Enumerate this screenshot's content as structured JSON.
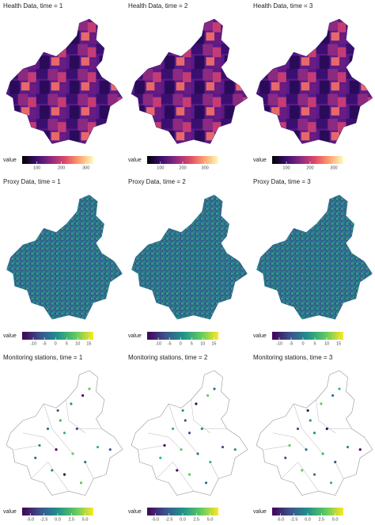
{
  "panels": [
    {
      "title": "Health Data, time = 1",
      "legend": {
        "title": "value",
        "palette": "magma",
        "lim": [
          40,
          330
        ],
        "ticks": [
          100,
          200,
          300
        ]
      }
    },
    {
      "title": "Health Data, time = 2",
      "legend": {
        "title": "value",
        "palette": "magma",
        "lim": [
          40,
          360
        ],
        "ticks": [
          100,
          200,
          300
        ]
      }
    },
    {
      "title": "Health Data, time = 3",
      "legend": {
        "title": "value",
        "palette": "magma",
        "lim": [
          40,
          340
        ],
        "ticks": [
          100,
          200,
          300
        ]
      }
    },
    {
      "title": "Proxy Data, time = 1",
      "legend": {
        "title": "value",
        "palette": "viridis",
        "lim": [
          -15,
          17
        ],
        "ticks": [
          -10,
          -5,
          0,
          5,
          10,
          15
        ]
      }
    },
    {
      "title": "Proxy Data, time = 2",
      "legend": {
        "title": "value",
        "palette": "viridis",
        "lim": [
          -15,
          17
        ],
        "ticks": [
          -10,
          -5,
          0,
          5,
          10,
          15
        ]
      }
    },
    {
      "title": "Proxy Data, time = 3",
      "legend": {
        "title": "value",
        "palette": "viridis",
        "lim": [
          -13,
          17
        ],
        "ticks": [
          -10,
          -5,
          0,
          5,
          10,
          15
        ]
      }
    },
    {
      "title": "Monitoring stations, time = 1",
      "legend": {
        "title": "value",
        "palette": "viridis",
        "lim": [
          -6.5,
          6.5
        ],
        "ticks": [
          {
            "value": -5,
            "label": "-5.0"
          },
          {
            "value": -2.5,
            "label": "-2.5"
          },
          {
            "value": 0,
            "label": "0.0"
          },
          {
            "value": 2.5,
            "label": "2.5"
          },
          {
            "value": 5,
            "label": "5.0"
          }
        ]
      }
    },
    {
      "title": "Monitoring stations, time = 2",
      "legend": {
        "title": "value",
        "palette": "viridis",
        "lim": [
          -6.5,
          6.5
        ],
        "ticks": [
          {
            "value": -5,
            "label": "-5.0"
          },
          {
            "value": -2.5,
            "label": "-2.5"
          },
          {
            "value": 0,
            "label": "0.0"
          },
          {
            "value": 2.5,
            "label": "2.5"
          },
          {
            "value": 5,
            "label": "5.0"
          }
        ]
      }
    },
    {
      "title": "Monitoring stations, time = 3",
      "legend": {
        "title": "value",
        "palette": "viridis",
        "lim": [
          -6.5,
          6.5
        ],
        "ticks": [
          {
            "value": -5,
            "label": "-5.0"
          },
          {
            "value": -2.5,
            "label": "-2.5"
          },
          {
            "value": 0,
            "label": "0.0"
          },
          {
            "value": 2.5,
            "label": "2.5"
          },
          {
            "value": 5,
            "label": "5.0"
          }
        ]
      }
    }
  ]
}
